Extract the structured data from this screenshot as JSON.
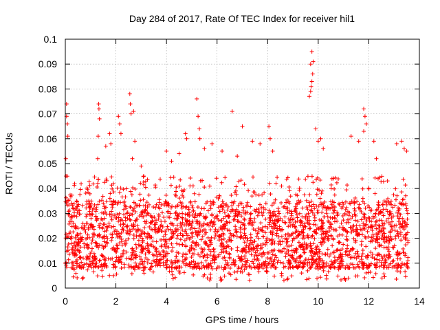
{
  "chart_data": {
    "type": "scatter",
    "title": "Day 284 of 2017, Rate Of TEC Index for receiver hil1",
    "xlabel": "GPS time / hours",
    "ylabel": "ROTI / TECUs",
    "xlim": [
      0,
      14
    ],
    "ylim": [
      0,
      0.1
    ],
    "x_ticks": [
      "0",
      "2",
      "4",
      "6",
      "8",
      "10",
      "12",
      "14"
    ],
    "y_ticks": [
      "0",
      "0.01",
      "0.02",
      "0.03",
      "0.04",
      "0.05",
      "0.06",
      "0.07",
      "0.08",
      "0.09",
      "0.1"
    ],
    "grid": true,
    "marker": "+",
    "color": "#ff0000",
    "x_extent": [
      0,
      13.55
    ],
    "bulk_range": [
      0.008,
      0.035
    ],
    "series": [
      {
        "name": "ROTI",
        "x": [
          0.05,
          0.05,
          0.08,
          0.1,
          0.02,
          0.03,
          1.32,
          1.33,
          1.35,
          1.3,
          1.28,
          1.6,
          1.75,
          1.8,
          2.1,
          2.15,
          2.2,
          2.55,
          2.57,
          2.6,
          2.7,
          2.75,
          2.65,
          3.0,
          3.1,
          4.0,
          4.2,
          4.5,
          4.75,
          4.8,
          5.2,
          5.25,
          5.3,
          5.32,
          5.5,
          5.8,
          6.2,
          6.6,
          6.8,
          7.0,
          7.4,
          7.7,
          8.05,
          8.1,
          8.2,
          9.65,
          9.7,
          9.72,
          9.75,
          9.78,
          9.7,
          9.8,
          9.75,
          9.9,
          10.0,
          10.1,
          10.2,
          11.3,
          11.6,
          11.8,
          11.85,
          11.9,
          11.8,
          12.2,
          12.3,
          13.1,
          13.3,
          13.4,
          13.5
        ],
        "y": [
          0.074,
          0.069,
          0.066,
          0.061,
          0.052,
          0.045,
          0.074,
          0.072,
          0.068,
          0.061,
          0.052,
          0.057,
          0.062,
          0.058,
          0.069,
          0.066,
          0.062,
          0.078,
          0.074,
          0.07,
          0.071,
          0.059,
          0.052,
          0.049,
          0.045,
          0.055,
          0.051,
          0.054,
          0.062,
          0.06,
          0.076,
          0.069,
          0.064,
          0.06,
          0.056,
          0.058,
          0.055,
          0.071,
          0.053,
          0.065,
          0.059,
          0.058,
          0.065,
          0.06,
          0.055,
          0.077,
          0.079,
          0.081,
          0.083,
          0.086,
          0.09,
          0.091,
          0.095,
          0.064,
          0.059,
          0.06,
          0.056,
          0.061,
          0.059,
          0.072,
          0.069,
          0.066,
          0.063,
          0.059,
          0.052,
          0.058,
          0.059,
          0.056,
          0.055
        ]
      }
    ]
  }
}
